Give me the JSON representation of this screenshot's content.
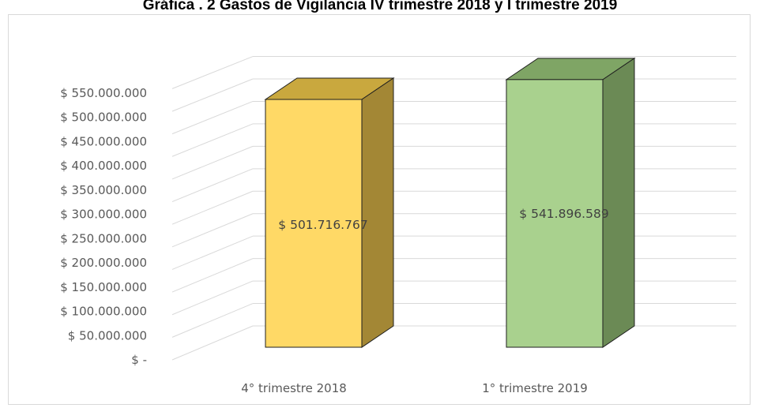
{
  "chart_data": {
    "type": "bar",
    "title": "Gráfica . 2 Gastos de Vigilancia IV trimestre 2018 y I trimestre 2019",
    "categories": [
      "4° trimestre 2018",
      "1° trimestre 2019"
    ],
    "values": [
      501716767,
      541896589
    ],
    "data_labels": [
      "$ 501.716.767",
      "$ 541.896.589"
    ],
    "y_ticks": [
      0,
      50000000,
      100000000,
      150000000,
      200000000,
      250000000,
      300000000,
      350000000,
      400000000,
      450000000,
      500000000,
      550000000
    ],
    "y_tick_labels": [
      "$ -",
      "$ 50.000.000",
      "$ 100.000.000",
      "$ 150.000.000",
      "$ 200.000.000",
      "$ 250.000.000",
      "$ 300.000.000",
      "$ 350.000.000",
      "$ 400.000.000",
      "$ 450.000.000",
      "$ 500.000.000",
      "$ 550.000.000"
    ],
    "ylim": [
      0,
      550000000
    ],
    "xlabel": "",
    "ylabel": "",
    "grid": true,
    "legend": "none",
    "style": "3d-column",
    "colors": {
      "bar_fronts": [
        "#ffd966",
        "#a9d18e"
      ],
      "bar_tops": [
        "#c9a83e",
        "#7fa565"
      ],
      "bar_sides": [
        "#a38735",
        "#6b8a55"
      ],
      "gridline": "#d9d9d9",
      "tick_text": "#595959"
    }
  }
}
